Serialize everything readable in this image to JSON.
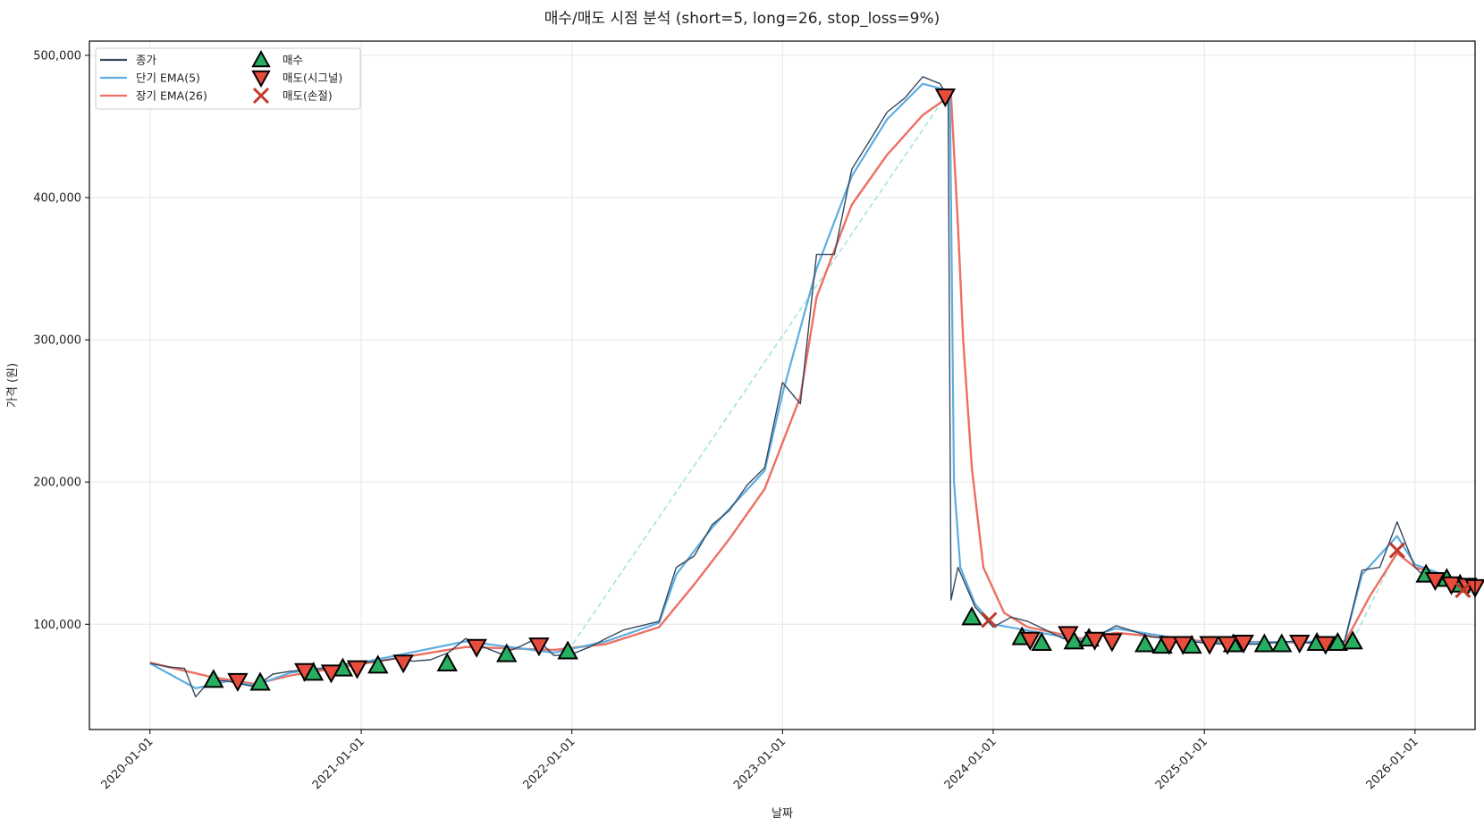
{
  "chart_data": {
    "type": "line",
    "title": "매수/매도 시점 분석 (short=5, long=26, stop_loss=9%)",
    "xlabel": "날짜",
    "ylabel": "가격 (원)",
    "x_range": [
      "2019-09-18",
      "2026-04-15"
    ],
    "ylim": [
      26000,
      510000
    ],
    "grid": true,
    "legend_position": "top-left",
    "x_tick_labels": [
      "2020-01-01",
      "2021-01-01",
      "2022-01-01",
      "2023-01-01",
      "2024-01-01",
      "2025-01-01",
      "2026-01-01"
    ],
    "y_tick_values": [
      100000,
      200000,
      300000,
      400000,
      500000
    ],
    "y_tick_labels": [
      "100,000",
      "200,000",
      "300,000",
      "400,000",
      "500,000"
    ],
    "colors": {
      "close": "#34495e",
      "ema_short": "#5dade2",
      "ema_long": "#ec7063",
      "buy": "#27ae60",
      "sell_signal": "#e74c3c",
      "sell_stoploss": "#c0392b",
      "trade_line": "#a3e4d7",
      "grid": "#e6e6e6"
    },
    "series": [
      {
        "name": "종가",
        "key": "close",
        "points": [
          [
            "2020-01-01",
            72500
          ],
          [
            "2020-02-01",
            70000
          ],
          [
            "2020-03-01",
            69000
          ],
          [
            "2020-03-20",
            49000
          ],
          [
            "2020-04-15",
            61000
          ],
          [
            "2020-05-15",
            60000
          ],
          [
            "2020-07-01",
            56000
          ],
          [
            "2020-08-01",
            65000
          ],
          [
            "2020-09-01",
            67000
          ],
          [
            "2020-10-01",
            68000
          ],
          [
            "2020-11-01",
            69000
          ],
          [
            "2020-12-01",
            72000
          ],
          [
            "2021-01-01",
            73000
          ],
          [
            "2021-02-01",
            74000
          ],
          [
            "2021-03-01",
            76000
          ],
          [
            "2021-04-01",
            74000
          ],
          [
            "2021-05-01",
            75000
          ],
          [
            "2021-06-01",
            80000
          ],
          [
            "2021-07-01",
            90000
          ],
          [
            "2021-08-01",
            84000
          ],
          [
            "2021-09-01",
            79000
          ],
          [
            "2021-10-01",
            84000
          ],
          [
            "2021-11-01",
            90000
          ],
          [
            "2021-12-01",
            78000
          ],
          [
            "2022-01-01",
            79000
          ],
          [
            "2022-02-01",
            84000
          ],
          [
            "2022-03-01",
            90000
          ],
          [
            "2022-04-01",
            96000
          ],
          [
            "2022-05-01",
            99000
          ],
          [
            "2022-06-01",
            102000
          ],
          [
            "2022-07-01",
            140000
          ],
          [
            "2022-08-01",
            148000
          ],
          [
            "2022-09-01",
            170000
          ],
          [
            "2022-10-01",
            180000
          ],
          [
            "2022-11-01",
            198000
          ],
          [
            "2022-12-01",
            210000
          ],
          [
            "2023-01-01",
            270000
          ],
          [
            "2023-02-01",
            255000
          ],
          [
            "2023-03-01",
            360000
          ],
          [
            "2023-04-01",
            360000
          ],
          [
            "2023-05-01",
            420000
          ],
          [
            "2023-06-01",
            440000
          ],
          [
            "2023-07-01",
            460000
          ],
          [
            "2023-08-01",
            470000
          ],
          [
            "2023-09-01",
            485000
          ],
          [
            "2023-10-01",
            480000
          ],
          [
            "2023-10-15",
            470000
          ],
          [
            "2023-10-20",
            117000
          ],
          [
            "2023-11-01",
            140000
          ],
          [
            "2023-12-01",
            112000
          ],
          [
            "2024-01-01",
            98000
          ],
          [
            "2024-02-01",
            105000
          ],
          [
            "2024-03-01",
            102000
          ],
          [
            "2024-04-01",
            96000
          ],
          [
            "2024-05-01",
            90000
          ],
          [
            "2024-06-01",
            88000
          ],
          [
            "2024-07-01",
            92000
          ],
          [
            "2024-08-01",
            99000
          ],
          [
            "2024-09-01",
            95000
          ],
          [
            "2024-10-01",
            91000
          ],
          [
            "2024-11-01",
            90000
          ],
          [
            "2024-12-01",
            88000
          ],
          [
            "2025-01-01",
            87000
          ],
          [
            "2025-02-01",
            86000
          ],
          [
            "2025-03-01",
            86000
          ],
          [
            "2025-04-01",
            86000
          ],
          [
            "2025-05-01",
            87000
          ],
          [
            "2025-06-01",
            88000
          ],
          [
            "2025-07-01",
            87000
          ],
          [
            "2025-08-01",
            89000
          ],
          [
            "2025-09-01",
            88000
          ],
          [
            "2025-10-01",
            138000
          ],
          [
            "2025-11-01",
            140000
          ],
          [
            "2025-12-01",
            172000
          ],
          [
            "2026-01-01",
            140000
          ],
          [
            "2026-02-01",
            128000
          ],
          [
            "2026-03-01",
            130000
          ],
          [
            "2026-04-01",
            128000
          ]
        ]
      },
      {
        "name": "단기 EMA(5)",
        "key": "ema_short",
        "points": [
          [
            "2020-01-01",
            72500
          ],
          [
            "2020-03-20",
            55000
          ],
          [
            "2020-05-15",
            60000
          ],
          [
            "2020-07-01",
            57000
          ],
          [
            "2020-09-01",
            66000
          ],
          [
            "2021-01-01",
            73000
          ],
          [
            "2021-07-01",
            88000
          ],
          [
            "2021-12-01",
            80000
          ],
          [
            "2022-03-01",
            88000
          ],
          [
            "2022-06-01",
            101000
          ],
          [
            "2022-07-01",
            135000
          ],
          [
            "2022-09-01",
            168000
          ],
          [
            "2022-12-01",
            208000
          ],
          [
            "2023-01-01",
            262000
          ],
          [
            "2023-03-01",
            350000
          ],
          [
            "2023-05-01",
            415000
          ],
          [
            "2023-07-01",
            455000
          ],
          [
            "2023-09-01",
            480000
          ],
          [
            "2023-10-18",
            475000
          ],
          [
            "2023-10-25",
            200000
          ],
          [
            "2023-11-05",
            140000
          ],
          [
            "2023-12-01",
            114000
          ],
          [
            "2024-01-01",
            100000
          ],
          [
            "2024-06-01",
            89000
          ],
          [
            "2024-08-01",
            97000
          ],
          [
            "2025-01-01",
            87000
          ],
          [
            "2025-09-01",
            88000
          ],
          [
            "2025-10-01",
            135000
          ],
          [
            "2025-12-01",
            162000
          ],
          [
            "2026-01-01",
            142000
          ],
          [
            "2026-04-01",
            129000
          ]
        ]
      },
      {
        "name": "장기 EMA(26)",
        "key": "ema_long",
        "points": [
          [
            "2020-01-01",
            73000
          ],
          [
            "2020-04-15",
            63000
          ],
          [
            "2020-07-01",
            58000
          ],
          [
            "2020-09-01",
            64000
          ],
          [
            "2021-01-01",
            72000
          ],
          [
            "2021-07-01",
            84000
          ],
          [
            "2021-12-01",
            82000
          ],
          [
            "2022-03-01",
            86000
          ],
          [
            "2022-06-01",
            98000
          ],
          [
            "2022-08-01",
            128000
          ],
          [
            "2022-10-01",
            160000
          ],
          [
            "2022-12-01",
            195000
          ],
          [
            "2023-02-01",
            260000
          ],
          [
            "2023-03-01",
            330000
          ],
          [
            "2023-05-01",
            395000
          ],
          [
            "2023-07-01",
            430000
          ],
          [
            "2023-09-01",
            458000
          ],
          [
            "2023-10-20",
            472000
          ],
          [
            "2023-11-01",
            380000
          ],
          [
            "2023-11-10",
            300000
          ],
          [
            "2023-11-25",
            210000
          ],
          [
            "2023-12-15",
            140000
          ],
          [
            "2024-01-20",
            108000
          ],
          [
            "2024-03-01",
            98000
          ],
          [
            "2024-06-01",
            90000
          ],
          [
            "2024-08-01",
            94000
          ],
          [
            "2025-01-01",
            88000
          ],
          [
            "2025-09-01",
            87000
          ],
          [
            "2025-10-15",
            120000
          ],
          [
            "2025-12-01",
            150000
          ],
          [
            "2026-01-01",
            140000
          ],
          [
            "2026-04-01",
            130000
          ]
        ]
      }
    ],
    "trade_segments": [
      [
        [
          "2021-12-25",
          81000
        ],
        [
          "2023-10-10",
          471000
        ]
      ],
      [
        [
          "2025-09-15",
          88000
        ],
        [
          "2025-12-01",
          152000
        ]
      ]
    ],
    "buy_points": [
      [
        "2020-04-20",
        61000
      ],
      [
        "2020-07-10",
        59000
      ],
      [
        "2020-10-10",
        66000
      ],
      [
        "2020-11-30",
        69000
      ],
      [
        "2021-01-30",
        71000
      ],
      [
        "2021-05-30",
        72500
      ],
      [
        "2021-09-10",
        79000
      ],
      [
        "2021-12-25",
        81000
      ],
      [
        "2023-11-25",
        105000
      ],
      [
        "2024-02-20",
        91000
      ],
      [
        "2024-03-25",
        87000
      ],
      [
        "2024-05-20",
        88000
      ],
      [
        "2024-06-15",
        90000
      ],
      [
        "2024-09-20",
        86000
      ],
      [
        "2024-10-20",
        85000
      ],
      [
        "2024-12-10",
        85000
      ],
      [
        "2025-02-20",
        86000
      ],
      [
        "2025-04-15",
        86000
      ],
      [
        "2025-05-15",
        86000
      ],
      [
        "2025-07-15",
        87000
      ],
      [
        "2025-08-20",
        87000
      ],
      [
        "2025-09-15",
        88000
      ],
      [
        "2026-01-20",
        135000
      ],
      [
        "2026-02-25",
        132000
      ],
      [
        "2026-03-20",
        128000
      ]
    ],
    "sell_signal_points": [
      [
        "2020-06-01",
        60000
      ],
      [
        "2020-09-25",
        67000
      ],
      [
        "2020-11-10",
        66000
      ],
      [
        "2020-12-25",
        69000
      ],
      [
        "2021-03-15",
        73000
      ],
      [
        "2021-07-20",
        84000
      ],
      [
        "2021-11-05",
        85000
      ],
      [
        "2023-10-10",
        471000
      ],
      [
        "2024-03-05",
        89000
      ],
      [
        "2024-05-10",
        93000
      ],
      [
        "2024-06-25",
        89000
      ],
      [
        "2024-07-25",
        88000
      ],
      [
        "2024-11-01",
        86000
      ],
      [
        "2024-11-25",
        86000
      ],
      [
        "2025-01-10",
        86000
      ],
      [
        "2025-02-10",
        86000
      ],
      [
        "2025-03-10",
        87000
      ],
      [
        "2025-06-15",
        87000
      ],
      [
        "2025-07-30",
        86000
      ],
      [
        "2026-02-05",
        131000
      ],
      [
        "2026-03-05",
        128000
      ],
      [
        "2026-04-01",
        127000
      ],
      [
        "2026-04-15",
        126000
      ]
    ],
    "sell_stoploss_points": [
      [
        "2023-12-25",
        103000
      ],
      [
        "2025-12-01",
        152000
      ],
      [
        "2026-03-25",
        124000
      ]
    ],
    "legend": [
      {
        "label": "종가",
        "key": "close",
        "kind": "line"
      },
      {
        "label": "단기 EMA(5)",
        "key": "ema_short",
        "kind": "line"
      },
      {
        "label": "장기 EMA(26)",
        "key": "ema_long",
        "kind": "line"
      },
      {
        "label": "매수",
        "key": "buy",
        "kind": "triangle-up"
      },
      {
        "label": "매도(시그널)",
        "key": "sell_signal",
        "kind": "triangle-down"
      },
      {
        "label": "매도(손절)",
        "key": "sell_stoploss",
        "kind": "x"
      }
    ]
  }
}
